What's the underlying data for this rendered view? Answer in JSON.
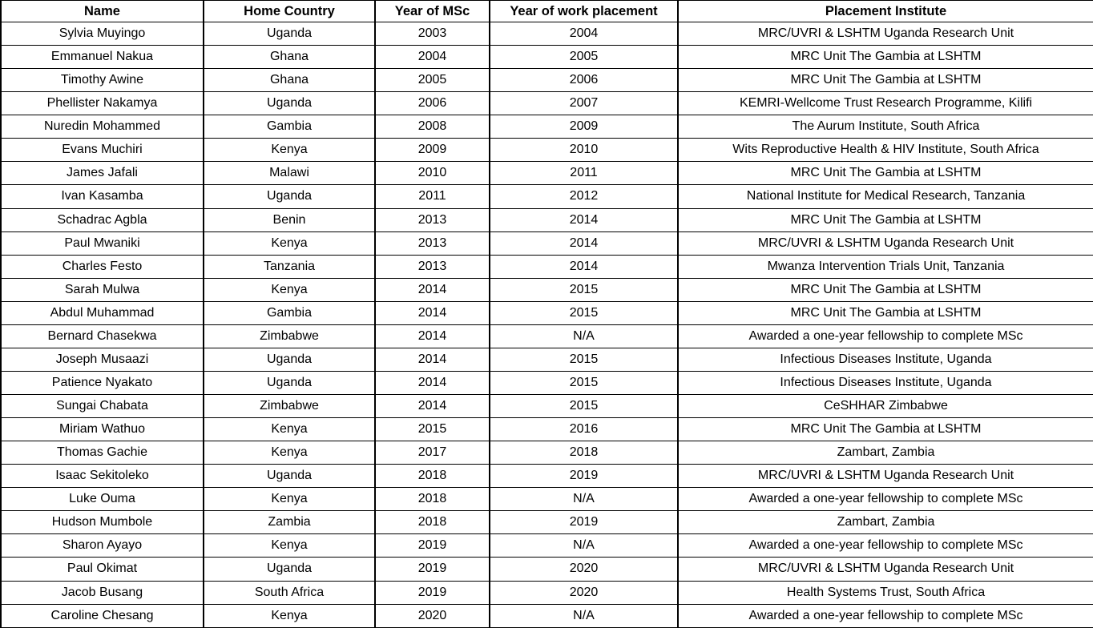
{
  "colors": {
    "background": "#ffffff",
    "grid_border": "#000000",
    "text": "#000000"
  },
  "table": {
    "columns": [
      {
        "id": "name",
        "label": "Name"
      },
      {
        "id": "home-country",
        "label": "Home Country"
      },
      {
        "id": "msc-year",
        "label": "Year of MSc"
      },
      {
        "id": "placement-year",
        "label": "Year of work placement"
      },
      {
        "id": "institute",
        "label": "Placement Institute"
      }
    ],
    "rows": [
      [
        "Sylvia Muyingo",
        "Uganda",
        "2003",
        "2004",
        "MRC/UVRI & LSHTM Uganda Research Unit"
      ],
      [
        "Emmanuel Nakua",
        "Ghana",
        "2004",
        "2005",
        "MRC Unit The Gambia at LSHTM"
      ],
      [
        "Timothy Awine",
        "Ghana",
        "2005",
        "2006",
        "MRC Unit The Gambia at LSHTM"
      ],
      [
        "Phellister Nakamya",
        "Uganda",
        "2006",
        "2007",
        "KEMRI-Wellcome Trust Research Programme, Kilifi"
      ],
      [
        "Nuredin Mohammed",
        "Gambia",
        "2008",
        "2009",
        "The Aurum Institute, South Africa"
      ],
      [
        "Evans Muchiri",
        "Kenya",
        "2009",
        "2010",
        "Wits Reproductive Health & HIV Institute, South Africa"
      ],
      [
        "James Jafali",
        "Malawi",
        "2010",
        "2011",
        "MRC Unit The Gambia at LSHTM"
      ],
      [
        "Ivan Kasamba",
        "Uganda",
        "2011",
        "2012",
        "National Institute for Medical Research, Tanzania"
      ],
      [
        "Schadrac Agbla",
        "Benin",
        "2013",
        "2014",
        "MRC Unit The Gambia at LSHTM"
      ],
      [
        "Paul Mwaniki",
        "Kenya",
        "2013",
        "2014",
        "MRC/UVRI & LSHTM Uganda Research Unit"
      ],
      [
        "Charles Festo",
        "Tanzania",
        "2013",
        "2014",
        "Mwanza Intervention Trials Unit, Tanzania"
      ],
      [
        "Sarah Mulwa",
        "Kenya",
        "2014",
        "2015",
        "MRC Unit The Gambia at LSHTM"
      ],
      [
        "Abdul Muhammad",
        "Gambia",
        "2014",
        "2015",
        "MRC Unit The Gambia at LSHTM"
      ],
      [
        "Bernard Chasekwa",
        "Zimbabwe",
        "2014",
        "N/A",
        "Awarded a one-year fellowship to complete MSc"
      ],
      [
        "Joseph Musaazi",
        "Uganda",
        "2014",
        "2015",
        "Infectious Diseases Institute, Uganda"
      ],
      [
        "Patience Nyakato",
        "Uganda",
        "2014",
        "2015",
        "Infectious Diseases Institute, Uganda"
      ],
      [
        "Sungai Chabata",
        "Zimbabwe",
        "2014",
        "2015",
        "CeSHHAR Zimbabwe"
      ],
      [
        "Miriam Wathuo",
        "Kenya",
        "2015",
        "2016",
        "MRC Unit The Gambia at LSHTM"
      ],
      [
        "Thomas Gachie",
        "Kenya",
        "2017",
        "2018",
        "Zambart, Zambia"
      ],
      [
        "Isaac Sekitoleko",
        "Uganda",
        "2018",
        "2019",
        "MRC/UVRI & LSHTM Uganda Research Unit"
      ],
      [
        "Luke Ouma",
        "Kenya",
        "2018",
        "N/A",
        "Awarded a one-year fellowship to complete MSc"
      ],
      [
        "Hudson Mumbole",
        "Zambia",
        "2018",
        "2019",
        "Zambart, Zambia"
      ],
      [
        "Sharon Ayayo",
        "Kenya",
        "2019",
        "N/A",
        "Awarded a one-year fellowship to complete MSc"
      ],
      [
        "Paul Okimat",
        "Uganda",
        "2019",
        "2020",
        "MRC/UVRI & LSHTM Uganda Research Unit"
      ],
      [
        "Jacob Busang",
        "South Africa",
        "2019",
        "2020",
        "Health Systems Trust, South Africa"
      ],
      [
        "Caroline Chesang",
        "Kenya",
        "2020",
        "N/A",
        "Awarded a one-year fellowship to complete MSc"
      ]
    ]
  }
}
